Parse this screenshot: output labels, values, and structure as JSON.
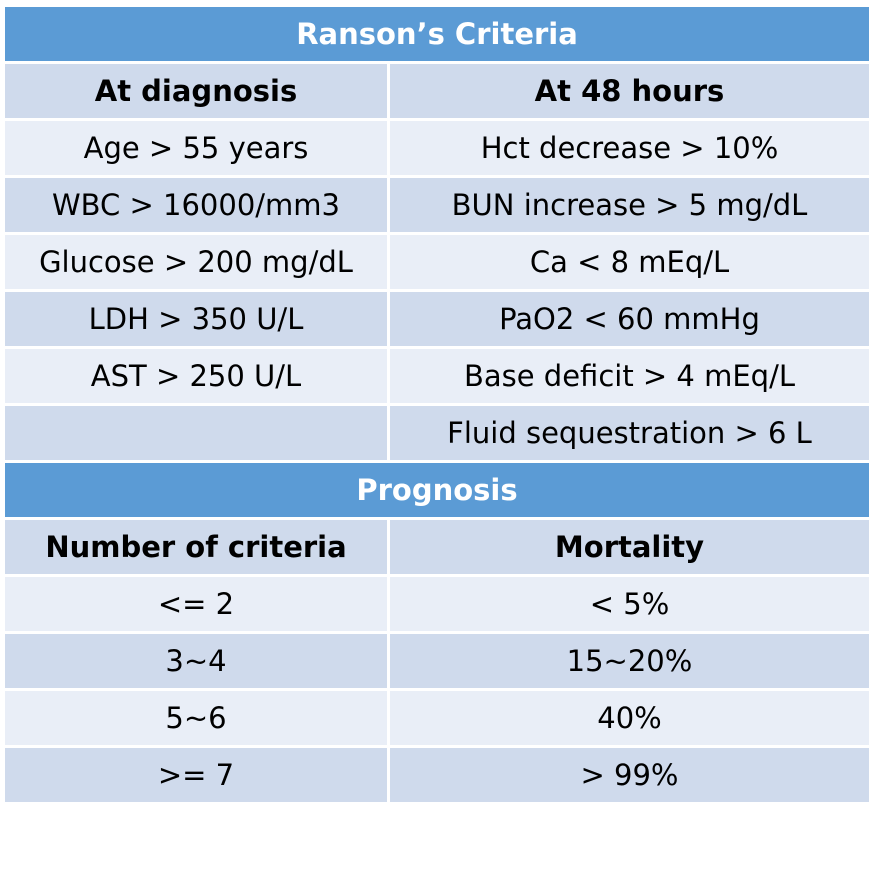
{
  "criteria": {
    "title": "Ranson’s Criteria",
    "headers": [
      "At diagnosis",
      "At 48 hours"
    ],
    "rows": [
      [
        "Age > 55 years",
        "Hct decrease > 10%"
      ],
      [
        "WBC > 16000/mm3",
        "BUN increase > 5 mg/dL"
      ],
      [
        "Glucose > 200 mg/dL",
        "Ca < 8 mEq/L"
      ],
      [
        "LDH > 350 U/L",
        "PaO2 < 60 mmHg"
      ],
      [
        "AST > 250 U/L",
        "Base deficit > 4 mEq/L"
      ],
      [
        "",
        "Fluid sequestration > 6 L"
      ]
    ]
  },
  "prognosis": {
    "title": "Prognosis",
    "headers": [
      "Number of criteria",
      "Mortality"
    ],
    "rows": [
      [
        "<= 2",
        "< 5%"
      ],
      [
        "3~4",
        "15~20%"
      ],
      [
        "5~6",
        "40%"
      ],
      [
        ">= 7",
        "> 99%"
      ]
    ]
  },
  "colors": {
    "title_band": "#5b9bd5",
    "row_dark": "#cfdaec",
    "row_light": "#e9eef7",
    "title_text": "#ffffff"
  }
}
